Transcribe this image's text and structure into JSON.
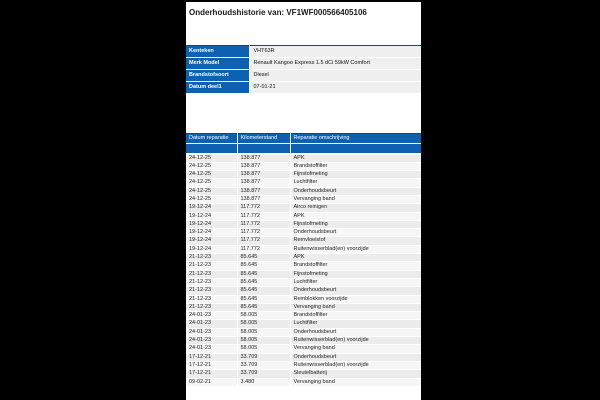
{
  "page": {
    "title": "Onderhoudshistorie van: VF1WF000566405106"
  },
  "vehicle_info": [
    {
      "label": "Kenteken",
      "value": "VHT63R"
    },
    {
      "label": "Merk Model",
      "value": "Renault Kangoo Express 1.5 dCi 59kW Comfort"
    },
    {
      "label": "Brandstofsoort",
      "value": "Diesel"
    },
    {
      "label": "Datum deel1",
      "value": "07-01-21"
    }
  ],
  "history": {
    "columns": [
      "Datum reparatie",
      "Kilometerstand",
      "Reparatie omschrijving"
    ],
    "rows": [
      [
        "24-12-25",
        "138.877",
        "APK"
      ],
      [
        "24-12-25",
        "138.877",
        "Brandstoffilter"
      ],
      [
        "24-12-25",
        "138.877",
        "Fijnstofmeting"
      ],
      [
        "24-12-25",
        "138.877",
        "Luchtfilter"
      ],
      [
        "24-12-25",
        "138.877",
        "Onderhoudsbeurt"
      ],
      [
        "24-12-25",
        "138.877",
        "Vervanging band"
      ],
      [
        "19-12-24",
        "117.772",
        "Airco reinigen"
      ],
      [
        "19-12-24",
        "117.772",
        "APK"
      ],
      [
        "19-12-24",
        "117.772",
        "Fijnstofmeting"
      ],
      [
        "19-12-24",
        "117.772",
        "Onderhoudsbeurt"
      ],
      [
        "19-12-24",
        "117.772",
        "Remvloeistof"
      ],
      [
        "19-12-24",
        "117.772",
        "Ruitenwisserblad(en) voorzijde"
      ],
      [
        "21-12-23",
        "85.645",
        "APK"
      ],
      [
        "21-12-23",
        "85.645",
        "Brandstoffilter"
      ],
      [
        "21-12-23",
        "85.645",
        "Fijnstofmeting"
      ],
      [
        "21-12-23",
        "85.645",
        "Luchtfilter"
      ],
      [
        "21-12-23",
        "85.645",
        "Onderhoudsbeurt"
      ],
      [
        "21-12-23",
        "85.645",
        "Remblokken voorzijde"
      ],
      [
        "21-12-23",
        "85.645",
        "Vervanging band"
      ],
      [
        "24-01-23",
        "58.005",
        "Brandstoffilter"
      ],
      [
        "24-01-23",
        "58.005",
        "Luchtfilter"
      ],
      [
        "24-01-23",
        "58.005",
        "Onderhoudsbeurt"
      ],
      [
        "24-01-23",
        "58.005",
        "Ruitenwisserblad(en) voorzijde"
      ],
      [
        "24-01-23",
        "58.005",
        "Vervanging band"
      ],
      [
        "17-12-21",
        "33.709",
        "Onderhoudsbeurt"
      ],
      [
        "17-12-21",
        "33.709",
        "Ruitenwisserblad(en) voorzijde"
      ],
      [
        "17-12-21",
        "33.709",
        "Sleutelbatterij"
      ],
      [
        "09-02-21",
        "3.480",
        "Vervanging band"
      ]
    ]
  },
  "colors": {
    "accent_blue": "#0e61b0",
    "border_navy": "#0a4a86",
    "row_odd": "#ececec",
    "row_even": "#f6f6f6",
    "info_value_bg": "#efefef",
    "page_bg": "#ffffff",
    "canvas_bg": "#000000"
  }
}
